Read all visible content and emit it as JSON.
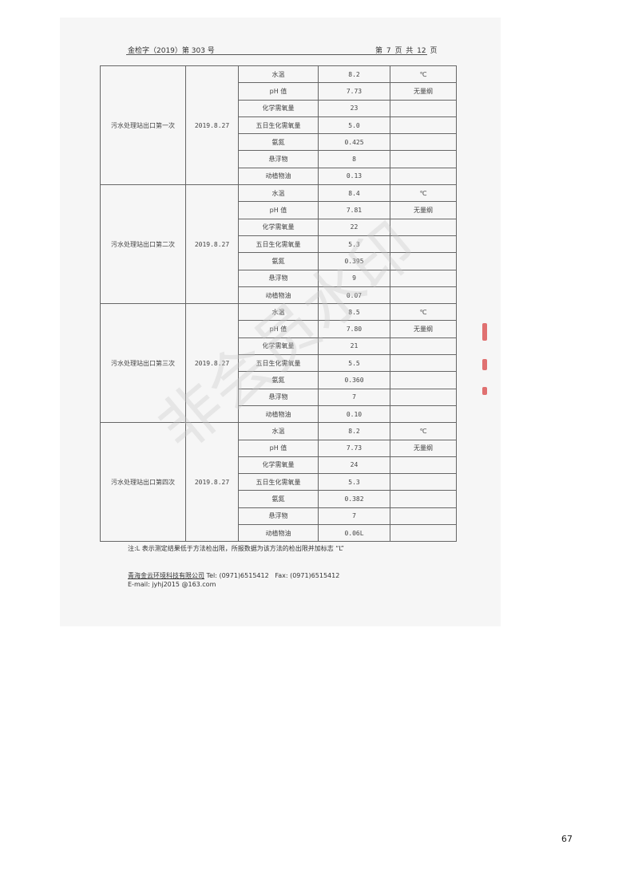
{
  "header": {
    "doc_no": "金检字（2019）第 303 号",
    "page_info": "第 7 页 共 12 页"
  },
  "table": {
    "groups": [
      {
        "location": "污水处理站出口第一次",
        "date": "2019.8.27",
        "rows": [
          {
            "item": "水温",
            "value": "8.2",
            "unit": "℃"
          },
          {
            "item": "pH 值",
            "value": "7.73",
            "unit": "无量纲"
          },
          {
            "item": "化学需氧量",
            "value": "23",
            "unit": ""
          },
          {
            "item": "五日生化需氧量",
            "value": "5.0",
            "unit": ""
          },
          {
            "item": "氨氮",
            "value": "0.425",
            "unit": ""
          },
          {
            "item": "悬浮物",
            "value": "8",
            "unit": ""
          },
          {
            "item": "动植物油",
            "value": "0.13",
            "unit": ""
          }
        ]
      },
      {
        "location": "污水处理站出口第二次",
        "date": "2019.8.27",
        "rows": [
          {
            "item": "水温",
            "value": "8.4",
            "unit": "℃"
          },
          {
            "item": "pH 值",
            "value": "7.81",
            "unit": "无量纲"
          },
          {
            "item": "化学需氧量",
            "value": "22",
            "unit": ""
          },
          {
            "item": "五日生化需氧量",
            "value": "5.3",
            "unit": ""
          },
          {
            "item": "氨氮",
            "value": "0.395",
            "unit": ""
          },
          {
            "item": "悬浮物",
            "value": "9",
            "unit": ""
          },
          {
            "item": "动植物油",
            "value": "0.07",
            "unit": ""
          }
        ]
      },
      {
        "location": "污水处理站出口第三次",
        "date": "2019.8.27",
        "rows": [
          {
            "item": "水温",
            "value": "8.5",
            "unit": "℃"
          },
          {
            "item": "pH 值",
            "value": "7.80",
            "unit": "无量纲"
          },
          {
            "item": "化学需氧量",
            "value": "21",
            "unit": ""
          },
          {
            "item": "五日生化需氧量",
            "value": "5.5",
            "unit": ""
          },
          {
            "item": "氨氮",
            "value": "0.360",
            "unit": ""
          },
          {
            "item": "悬浮物",
            "value": "7",
            "unit": ""
          },
          {
            "item": "动植物油",
            "value": "0.10",
            "unit": ""
          }
        ]
      },
      {
        "location": "污水处理站出口第四次",
        "date": "2019.8.27",
        "rows": [
          {
            "item": "水温",
            "value": "8.2",
            "unit": "℃"
          },
          {
            "item": "pH 值",
            "value": "7.73",
            "unit": "无量纲"
          },
          {
            "item": "化学需氧量",
            "value": "24",
            "unit": ""
          },
          {
            "item": "五日生化需氧量",
            "value": "5.3",
            "unit": ""
          },
          {
            "item": "氨氮",
            "value": "0.382",
            "unit": ""
          },
          {
            "item": "悬浮物",
            "value": "7",
            "unit": ""
          },
          {
            "item": "动植物油",
            "value": "0.06L",
            "unit": ""
          }
        ]
      }
    ]
  },
  "note": "注:L 表示测定结果低于方法检出限，所报数据为该方法的检出限并加标志 “L”",
  "footer": {
    "company": "青海金云环境科技有限公司",
    "tel": "Tel:   (0971)6515412",
    "fax": "Fax:   (0971)6515412",
    "email": "E-mail:  jyhj2015 @163.com"
  },
  "watermark": "非会员水印",
  "page_number": "67"
}
